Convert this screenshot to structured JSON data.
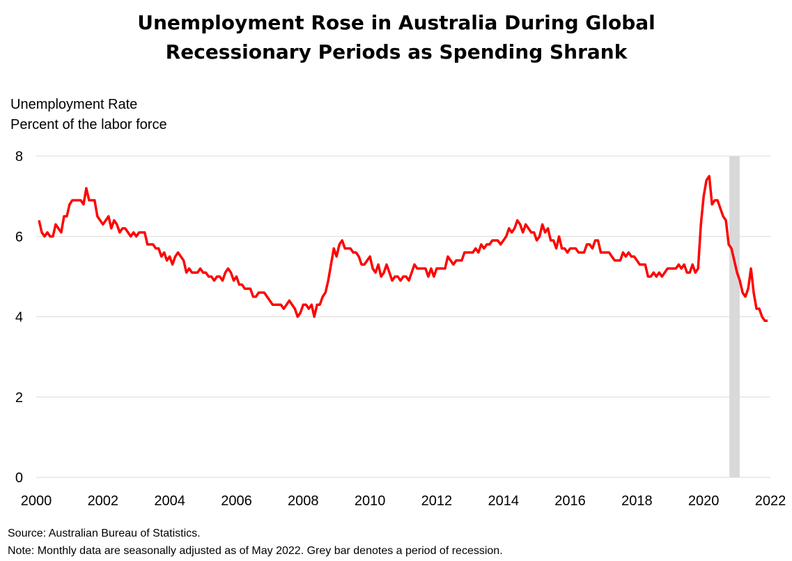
{
  "chart_data": {
    "type": "line",
    "title": [
      "Unemployment Rose in Australia During Global",
      "Recessionary Periods as Spending Shrank"
    ],
    "ylabel": [
      "Unemployment Rate",
      "Percent of the labor force"
    ],
    "xlabel": "",
    "xlim": [
      2000,
      2022
    ],
    "ylim": [
      0,
      8
    ],
    "yticks": [
      "0",
      "2",
      "4",
      "6",
      "8"
    ],
    "xticks": [
      "2000",
      "2002",
      "2004",
      "2006",
      "2008",
      "2010",
      "2012",
      "2014",
      "2016",
      "2018",
      "2020",
      "2022"
    ],
    "grid": true,
    "series": [
      {
        "name": "Unemployment Rate",
        "color": "#ff0000",
        "start": "2000-02",
        "frequency": "monthly",
        "values": [
          6.4,
          6.1,
          6.0,
          6.1,
          6.0,
          6.0,
          6.3,
          6.2,
          6.1,
          6.5,
          6.5,
          6.8,
          6.9,
          6.9,
          6.9,
          6.9,
          6.8,
          7.2,
          6.9,
          6.9,
          6.9,
          6.5,
          6.4,
          6.3,
          6.4,
          6.5,
          6.2,
          6.4,
          6.3,
          6.1,
          6.2,
          6.2,
          6.1,
          6.0,
          6.1,
          6.0,
          6.1,
          6.1,
          6.1,
          5.8,
          5.8,
          5.8,
          5.7,
          5.7,
          5.5,
          5.6,
          5.4,
          5.5,
          5.3,
          5.5,
          5.6,
          5.5,
          5.4,
          5.1,
          5.2,
          5.1,
          5.1,
          5.1,
          5.2,
          5.1,
          5.1,
          5.0,
          5.0,
          4.9,
          5.0,
          5.0,
          4.9,
          5.1,
          5.2,
          5.1,
          4.9,
          5.0,
          4.8,
          4.8,
          4.7,
          4.7,
          4.7,
          4.5,
          4.5,
          4.6,
          4.6,
          4.6,
          4.5,
          4.4,
          4.3,
          4.3,
          4.3,
          4.3,
          4.2,
          4.3,
          4.4,
          4.3,
          4.2,
          4.0,
          4.1,
          4.3,
          4.3,
          4.2,
          4.3,
          4.0,
          4.3,
          4.3,
          4.5,
          4.6,
          4.9,
          5.3,
          5.7,
          5.5,
          5.8,
          5.9,
          5.7,
          5.7,
          5.7,
          5.6,
          5.6,
          5.5,
          5.3,
          5.3,
          5.4,
          5.5,
          5.2,
          5.1,
          5.3,
          5.0,
          5.1,
          5.3,
          5.1,
          4.9,
          5.0,
          5.0,
          4.9,
          5.0,
          5.0,
          4.9,
          5.1,
          5.3,
          5.2,
          5.2,
          5.2,
          5.2,
          5.0,
          5.2,
          5.0,
          5.2,
          5.2,
          5.2,
          5.2,
          5.5,
          5.4,
          5.3,
          5.4,
          5.4,
          5.4,
          5.6,
          5.6,
          5.6,
          5.6,
          5.7,
          5.6,
          5.8,
          5.7,
          5.8,
          5.8,
          5.9,
          5.9,
          5.9,
          5.8,
          5.9,
          6.0,
          6.2,
          6.1,
          6.2,
          6.4,
          6.3,
          6.1,
          6.3,
          6.2,
          6.1,
          6.1,
          5.9,
          6.0,
          6.3,
          6.1,
          6.2,
          5.9,
          5.9,
          5.7,
          6.0,
          5.7,
          5.7,
          5.6,
          5.7,
          5.7,
          5.7,
          5.6,
          5.6,
          5.6,
          5.8,
          5.8,
          5.7,
          5.9,
          5.9,
          5.6,
          5.6,
          5.6,
          5.6,
          5.5,
          5.4,
          5.4,
          5.4,
          5.6,
          5.5,
          5.6,
          5.5,
          5.5,
          5.4,
          5.3,
          5.3,
          5.3,
          5.0,
          5.0,
          5.1,
          5.0,
          5.1,
          5.0,
          5.1,
          5.2,
          5.2,
          5.2,
          5.2,
          5.3,
          5.2,
          5.3,
          5.1,
          5.1,
          5.3,
          5.1,
          5.2,
          6.3,
          7.0,
          7.4,
          7.5,
          6.8,
          6.9,
          6.9,
          6.7,
          6.5,
          6.4,
          5.8,
          5.7,
          5.4,
          5.1,
          4.9,
          4.6,
          4.5,
          4.7,
          5.2,
          4.6,
          4.2,
          4.2,
          4.0,
          3.9,
          3.9
        ]
      }
    ],
    "recession_band": {
      "from": 2020.77,
      "to": 2021.08,
      "color": "#d9d9d9"
    },
    "notes": [
      "Source: Australian Bureau of Statistics.",
      "Note: Monthly data are seasonally adjusted as of May 2022. Grey bar denotes a period of recession."
    ]
  }
}
